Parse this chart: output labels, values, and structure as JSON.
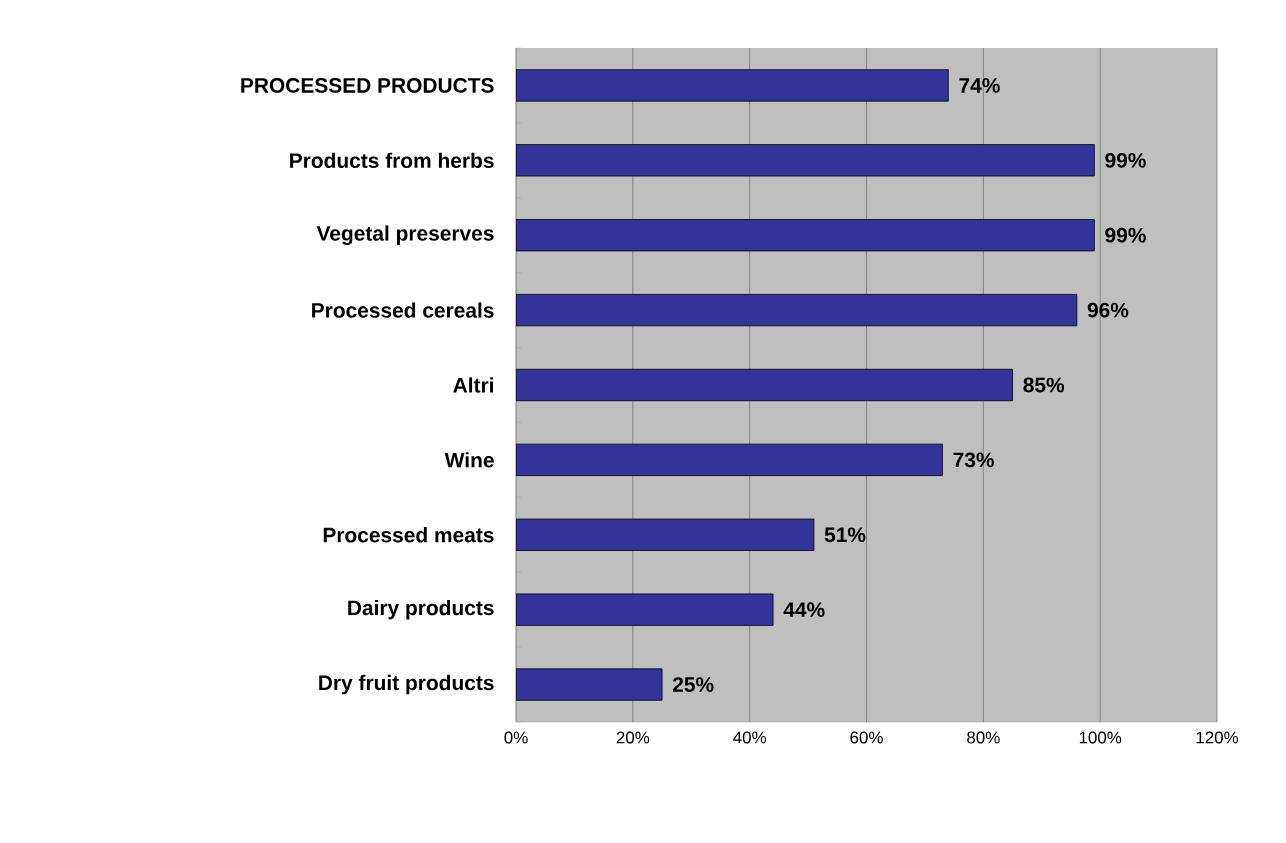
{
  "chart_data": {
    "type": "bar",
    "orientation": "horizontal",
    "categories": [
      "PROCESSED PRODUCTS",
      "Products from herbs",
      "Vegetal preserves",
      "Processed cereals",
      "Altri",
      "Wine",
      "Processed meats",
      "Dairy products",
      "Dry fruit products"
    ],
    "values": [
      74,
      99,
      99,
      96,
      85,
      73,
      51,
      44,
      25
    ],
    "value_labels": [
      "74%",
      "99%",
      "99%",
      "96%",
      "85%",
      "73%",
      "51%",
      "44%",
      "25%"
    ],
    "color": "#333399",
    "xlim": [
      0,
      120
    ],
    "xticks": [
      {
        "value": 0,
        "label": "0%"
      },
      {
        "value": 20,
        "label": "20%"
      },
      {
        "value": 40,
        "label": "40%"
      },
      {
        "value": 60,
        "label": "60%"
      },
      {
        "value": 80,
        "label": "80%"
      },
      {
        "value": 100,
        "label": "100%"
      },
      {
        "value": 120,
        "label": "120%"
      }
    ],
    "grid": "x"
  }
}
